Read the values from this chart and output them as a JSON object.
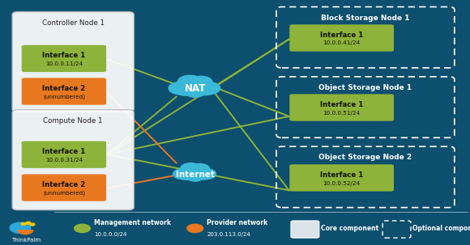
{
  "bg_color": "#0d4f6e",
  "controller_label": "Controller Node 1",
  "compute_label": "Compute Node 1",
  "block_label": "Block Storage Node 1",
  "obj1_label": "Object Storage Node 1",
  "obj2_label": "Object Storage Node 2",
  "nat_label": "NAT",
  "internet_label": "Internet",
  "cloud_color": "#3ab8d8",
  "mgmt_color": "#8db33a",
  "provider_color": "#e87820",
  "iface_text_color": "#111100",
  "node_bg": "#ffffff",
  "node_edge": "#aaaaaa",
  "dashed_edge": "#ffffff",
  "white": "#ffffff",
  "legend_mgmt_label": "Management network",
  "legend_mgmt_sub": "10.0.0.0/24",
  "legend_prov_label": "Provider network",
  "legend_prov_sub": "203.0.113.0/24",
  "legend_core_label": "Core component",
  "legend_opt_label": "Optional component",
  "thinkpalm_label": "ThinkPalm",
  "ctrl_if1_label": "Interface 1",
  "ctrl_if1_sub": "10.0.0.11/24",
  "ctrl_if2_label": "Interface 2",
  "ctrl_if2_sub": "(unnumbered)",
  "comp_if1_label": "Interface 1",
  "comp_if1_sub": "10.0.0.31/24",
  "comp_if2_label": "Interface 2",
  "comp_if2_sub": "(unnumbered)",
  "block_if1_label": "Interface 1",
  "block_if1_sub": "10.0.0.41/24",
  "obj1_if1_label": "Interface 1",
  "obj1_if1_sub": "10.0.0.51/24",
  "obj2_if1_label": "Interface 1",
  "obj2_if1_sub": "10.0.0.52/24"
}
